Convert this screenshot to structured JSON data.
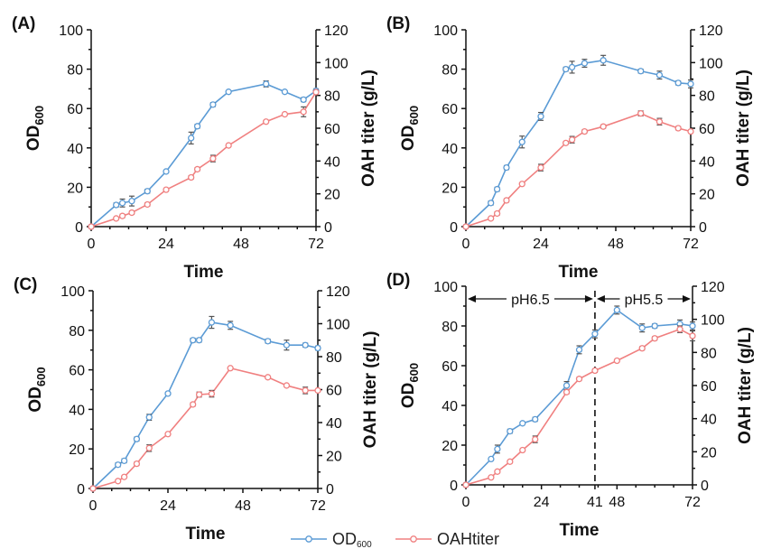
{
  "legend": {
    "od_label": "OD",
    "od_sub": "600",
    "oah_label": "OAHtiter",
    "od_color": "#5b9bd5",
    "oah_color": "#f08080"
  },
  "chart_data": [
    {
      "type": "line",
      "panel": "(A)",
      "xlabel": "Time",
      "ylabel_left": "OD",
      "ylabel_left_sub": "600",
      "ylabel_right": "OAH titer (g/L)",
      "xticks": [
        0,
        24,
        48,
        72
      ],
      "ylim_left": [
        0,
        100
      ],
      "yticks_left": [
        0,
        20,
        40,
        60,
        80,
        100
      ],
      "ylim_right": [
        0,
        120
      ],
      "yticks_right": [
        0,
        20,
        40,
        60,
        80,
        100,
        120
      ],
      "series": [
        {
          "name": "OD600",
          "axis": "left",
          "color": "#5b9bd5",
          "x": [
            0,
            8,
            10,
            13,
            18,
            24,
            32,
            34,
            39,
            44,
            56,
            62,
            68,
            72
          ],
          "y": [
            0,
            11,
            12,
            13,
            18,
            28,
            45,
            51,
            62,
            68.5,
            72.5,
            68.5,
            64.5,
            69
          ],
          "err": [
            0,
            1,
            2,
            2.5,
            1,
            0.5,
            3,
            1,
            1,
            0.5,
            1.5,
            0.5,
            1,
            1
          ]
        },
        {
          "name": "OAHtiter",
          "axis": "right",
          "color": "#f08080",
          "x": [
            0,
            8,
            10,
            13,
            18,
            24,
            32,
            34,
            39,
            44,
            56,
            62,
            68,
            72
          ],
          "y": [
            0,
            5,
            6.5,
            8.5,
            13.5,
            22.5,
            30,
            35,
            41.5,
            49.5,
            64,
            68.5,
            70,
            82
          ],
          "err": [
            0,
            0.5,
            1,
            1,
            1,
            0.5,
            1,
            1,
            2,
            0.5,
            0.5,
            0.5,
            3,
            1
          ]
        }
      ]
    },
    {
      "type": "line",
      "panel": "(B)",
      "xlabel": "Time",
      "ylabel_left": "OD",
      "ylabel_left_sub": "600",
      "ylabel_right": "OAH titer (g/L)",
      "xticks": [
        0,
        24,
        48,
        72
      ],
      "ylim_left": [
        0,
        100
      ],
      "yticks_left": [
        0,
        20,
        40,
        60,
        80,
        100
      ],
      "ylim_right": [
        0,
        120
      ],
      "yticks_right": [
        0,
        20,
        40,
        60,
        80,
        100,
        120
      ],
      "series": [
        {
          "name": "OD600",
          "axis": "left",
          "color": "#5b9bd5",
          "x": [
            0,
            8,
            10,
            13,
            18,
            24,
            32,
            34,
            38,
            44,
            56,
            62,
            68,
            72
          ],
          "y": [
            0,
            12,
            19,
            30,
            43,
            56,
            80,
            81,
            83,
            84.5,
            79,
            77,
            73,
            72.5
          ],
          "err": [
            0,
            1,
            1,
            1,
            3,
            2,
            1,
            3,
            2,
            2.5,
            1,
            2,
            1,
            2
          ]
        },
        {
          "name": "OAHtiter",
          "axis": "right",
          "color": "#f08080",
          "x": [
            0,
            8,
            10,
            13,
            18,
            24,
            32,
            34,
            38,
            44,
            56,
            62,
            68,
            72
          ],
          "y": [
            0,
            5,
            8,
            16,
            26,
            36,
            51,
            53,
            58,
            61,
            69,
            64,
            60,
            58
          ],
          "err": [
            0,
            0.5,
            1,
            1,
            0.5,
            2,
            0.5,
            2,
            1,
            1,
            1.5,
            2,
            1,
            0.5
          ]
        }
      ]
    },
    {
      "type": "line",
      "panel": "(C)",
      "xlabel": "Time",
      "ylabel_left": "OD",
      "ylabel_left_sub": "600",
      "ylabel_right": "OAH titer (g/L)",
      "xticks": [
        0,
        24,
        48,
        72
      ],
      "ylim_left": [
        0,
        100
      ],
      "yticks_left": [
        0,
        20,
        40,
        60,
        80,
        100
      ],
      "ylim_right": [
        0,
        120
      ],
      "yticks_right": [
        0,
        20,
        40,
        60,
        80,
        100,
        120
      ],
      "series": [
        {
          "name": "OD600",
          "axis": "left",
          "color": "#5b9bd5",
          "x": [
            0,
            8,
            10,
            14,
            18,
            24,
            32,
            34,
            38,
            44,
            56,
            62,
            68,
            72
          ],
          "y": [
            0,
            12,
            14,
            25,
            36,
            48,
            75,
            75,
            84,
            82.5,
            74.5,
            72.5,
            72.5,
            71
          ],
          "err": [
            0,
            1,
            1,
            1,
            1.5,
            0.5,
            1,
            1,
            3,
            2,
            1,
            2.5,
            1,
            1
          ]
        },
        {
          "name": "OAHtiter",
          "axis": "right",
          "color": "#f08080",
          "x": [
            0,
            8,
            10,
            14,
            18,
            24,
            32,
            34,
            38,
            44,
            56,
            62,
            68,
            72
          ],
          "y": [
            0,
            4.5,
            7,
            15,
            24.5,
            33,
            51,
            57,
            57.5,
            73,
            67.5,
            62.5,
            59.5,
            59.5
          ],
          "err": [
            0,
            0.5,
            0.5,
            1,
            2,
            0.5,
            1,
            1.5,
            2,
            0.5,
            0.5,
            0.5,
            2,
            0.5
          ]
        }
      ]
    },
    {
      "type": "line",
      "panel": "(D)",
      "xlabel": "Time",
      "ylabel_left": "OD",
      "ylabel_left_sub": "600",
      "ylabel_right": "OAH titer (g/L)",
      "xticks": [
        0,
        24,
        41,
        48,
        72
      ],
      "ylim_left": [
        0,
        100
      ],
      "yticks_left": [
        0,
        20,
        40,
        60,
        80,
        100
      ],
      "ylim_right": [
        0,
        120
      ],
      "yticks_right": [
        0,
        20,
        40,
        60,
        80,
        100,
        120
      ],
      "vline_x": 41,
      "annotations": [
        {
          "text": "pH6.5",
          "x_from": 0,
          "x_to": 41
        },
        {
          "text": "pH5.5",
          "x_from": 41,
          "x_to": 72
        }
      ],
      "series": [
        {
          "name": "OD600",
          "axis": "left",
          "color": "#5b9bd5",
          "x": [
            0,
            8,
            10,
            14,
            18,
            22,
            32,
            36,
            41,
            48,
            56,
            60,
            68,
            72
          ],
          "y": [
            0,
            13,
            18,
            27,
            31,
            33,
            50,
            68,
            76,
            88,
            79,
            80,
            81,
            80
          ],
          "err": [
            0,
            0.5,
            2,
            1,
            0.5,
            1,
            2,
            2,
            2,
            2,
            2,
            1,
            2,
            2
          ]
        },
        {
          "name": "OAHtiter",
          "axis": "right",
          "color": "#f08080",
          "x": [
            0,
            8,
            10,
            14,
            18,
            22,
            32,
            36,
            41,
            48,
            56,
            60,
            68,
            72
          ],
          "y": [
            0,
            4.5,
            8,
            14,
            21,
            27.5,
            56,
            64,
            69,
            75,
            82.5,
            88.5,
            94,
            90
          ],
          "err": [
            0,
            0.5,
            0.5,
            0.5,
            0.5,
            2,
            1,
            1,
            1,
            0.5,
            1,
            1,
            2,
            3
          ]
        }
      ]
    }
  ]
}
